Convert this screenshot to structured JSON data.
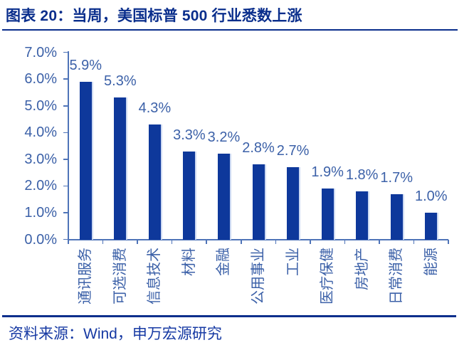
{
  "title": "图表 20：当周，美国标普 500 行业悉数上涨",
  "source": "资料来源：Wind，申万宏源研究",
  "colors": {
    "title_navy": "#0A2E8C",
    "bar_fill": "#0E389B",
    "bar_edge_highlight": "#CCD9F2",
    "axis_line": "#4F74B8",
    "axis_label": "#3C61A8",
    "source_text": "#1639A3",
    "background": "#FFFFFF"
  },
  "chart_data": {
    "type": "bar",
    "title": "当周，美国标普 500 行业悉数上涨",
    "categories": [
      "通讯服务",
      "可选消费",
      "信息技术",
      "材料",
      "金融",
      "公用事业",
      "工业",
      "医疗保健",
      "房地产",
      "日常消费",
      "能源"
    ],
    "values": [
      5.9,
      5.3,
      4.3,
      3.3,
      3.2,
      2.8,
      2.7,
      1.9,
      1.8,
      1.7,
      1.0
    ],
    "value_labels": [
      "5.9%",
      "5.3%",
      "4.3%",
      "3.3%",
      "3.2%",
      "2.8%",
      "2.7%",
      "1.9%",
      "1.8%",
      "1.7%",
      "1.0%"
    ],
    "xlabel": "",
    "ylabel": "",
    "ylim": [
      0,
      7
    ],
    "ytick_step": 1.0,
    "ytick_labels": [
      "0.0%",
      "1.0%",
      "2.0%",
      "3.0%",
      "4.0%",
      "5.0%",
      "6.0%",
      "7.0%"
    ],
    "grid": false,
    "legend": "none",
    "bar_orientation": "vertical",
    "category_label_rotation_deg": -90
  }
}
